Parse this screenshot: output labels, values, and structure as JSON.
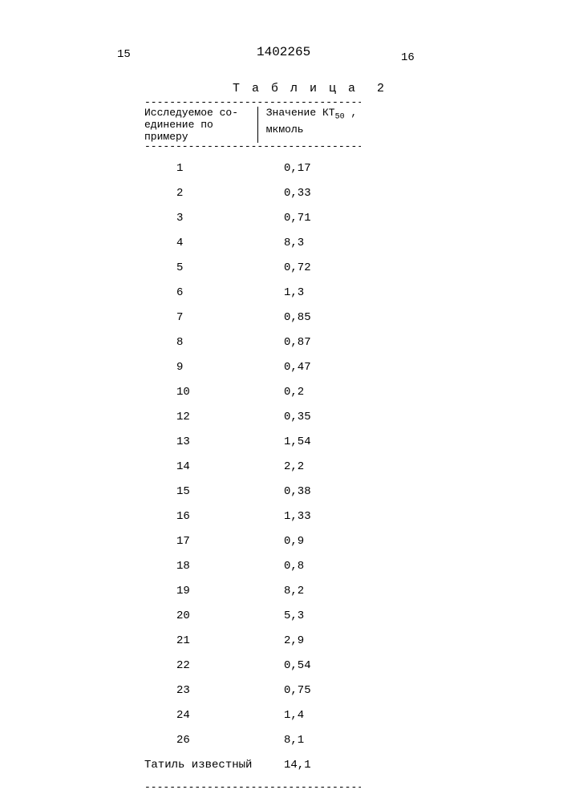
{
  "header": {
    "page_left": "15",
    "doc_number": "1402265",
    "page_right": "16"
  },
  "table": {
    "caption_prefix": "Т а б л и ц а",
    "caption_number": "2",
    "dashes": "-----------------------------------",
    "col1_line1": "Исследуемое со-",
    "col1_line2": "единение по",
    "col1_line3": "примеру",
    "col2_line1_before": "Значение КТ",
    "col2_line1_sub": "50",
    "col2_line1_after": " ,",
    "col2_line2": "мкмоль",
    "rows": [
      {
        "c1": "1",
        "c2": "0,17"
      },
      {
        "c1": "2",
        "c2": "0,33"
      },
      {
        "c1": "3",
        "c2": "0,71"
      },
      {
        "c1": "4",
        "c2": "8,3"
      },
      {
        "c1": "5",
        "c2": "0,72"
      },
      {
        "c1": "6",
        "c2": "1,3"
      },
      {
        "c1": "7",
        "c2": "0,85"
      },
      {
        "c1": "8",
        "c2": "0,87"
      },
      {
        "c1": "9",
        "c2": "0,47"
      },
      {
        "c1": "10",
        "c2": "0,2"
      },
      {
        "c1": "12",
        "c2": "0,35"
      },
      {
        "c1": "13",
        "c2": "1,54"
      },
      {
        "c1": "14",
        "c2": "2,2"
      },
      {
        "c1": "15",
        "c2": "0,38"
      },
      {
        "c1": "16",
        "c2": "1,33"
      },
      {
        "c1": "17",
        "c2": "0,9"
      },
      {
        "c1": "18",
        "c2": "0,8"
      },
      {
        "c1": "19",
        "c2": "8,2"
      },
      {
        "c1": "20",
        "c2": "5,3"
      },
      {
        "c1": "21",
        "c2": "2,9"
      },
      {
        "c1": "22",
        "c2": "0,54"
      },
      {
        "c1": "23",
        "c2": "0,75"
      },
      {
        "c1": "24",
        "c2": "1,4"
      },
      {
        "c1": "26",
        "c2": "8,1"
      },
      {
        "c1": "Татиль известный",
        "c2": "14,1",
        "wide": true
      }
    ]
  }
}
